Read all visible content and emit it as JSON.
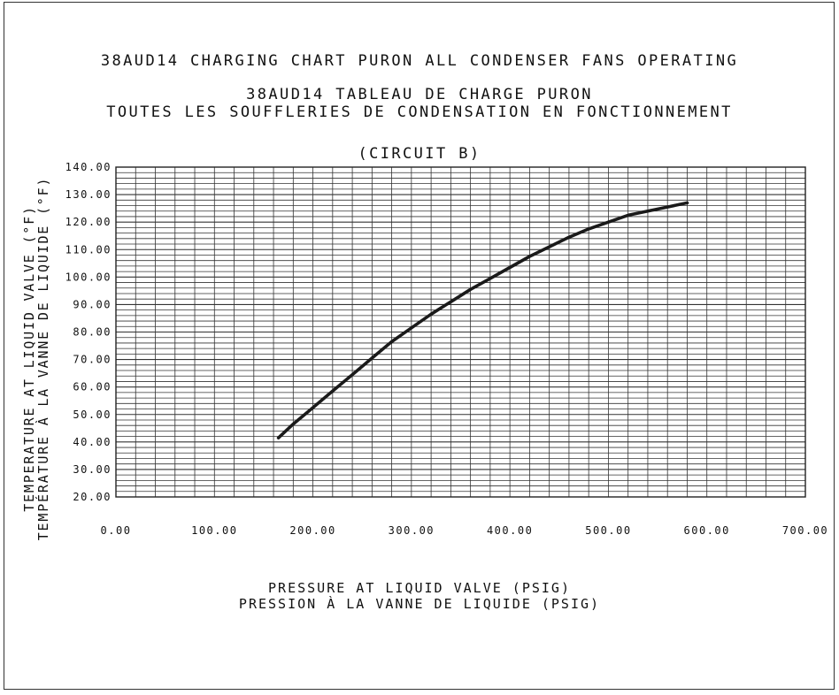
{
  "titles": {
    "line1": "38AUD14 CHARGING CHART PURON ALL CONDENSER FANS OPERATING",
    "line2": "38AUD14 TABLEAU DE CHARGE PURON",
    "line3": "TOUTES LES SOUFFLERIES DE CONDENSATION EN FONCTIONNEMENT",
    "circuit": "(CIRCUIT B)"
  },
  "axes": {
    "xlabel1": "PRESSURE AT LIQUID VALVE (PSIG)",
    "xlabel2": "PRESSION À LA VANNE DE LIQUIDE (PSIG)",
    "ylabel1": "TEMPERATURE AT LIQUID VALVE (°F)",
    "ylabel2": "TEMPÉRATURE À LA VANNE DE LIQUIDE (°F)"
  },
  "chart_data": {
    "type": "line",
    "title": "38AUD14 CHARGING CHART PURON ALL CONDENSER FANS OPERATING",
    "subtitle": "(CIRCUIT B)",
    "xlabel": "PRESSURE AT LIQUID VALVE (PSIG)",
    "ylabel": "TEMPERATURE AT LIQUID VALVE (°F)",
    "xlim": [
      0,
      700
    ],
    "ylim": [
      20,
      140
    ],
    "x_ticks": [
      "0.00",
      "100.00",
      "200.00",
      "300.00",
      "400.00",
      "500.00",
      "600.00",
      "700.00"
    ],
    "y_ticks": [
      "20.00",
      "30.00",
      "40.00",
      "50.00",
      "60.00",
      "70.00",
      "80.00",
      "90.00",
      "100.00",
      "110.00",
      "120.00",
      "130.00",
      "140.00"
    ],
    "grid": true,
    "grid_minor_x": 20,
    "grid_minor_y": 2,
    "line_color": "#1a1a1a",
    "series": [
      {
        "x": [
          165,
          180,
          200,
          220,
          240,
          260,
          280,
          300,
          320,
          340,
          360,
          380,
          400,
          420,
          440,
          460,
          480,
          500,
          520,
          540,
          560,
          580
        ],
        "y": [
          41.5,
          46.5,
          52.5,
          58.5,
          64.5,
          70.5,
          76.5,
          81.5,
          86.5,
          91.0,
          95.5,
          99.5,
          103.5,
          107.5,
          111.0,
          114.5,
          117.5,
          120.0,
          122.5,
          124.0,
          125.5,
          127.0
        ]
      }
    ]
  }
}
